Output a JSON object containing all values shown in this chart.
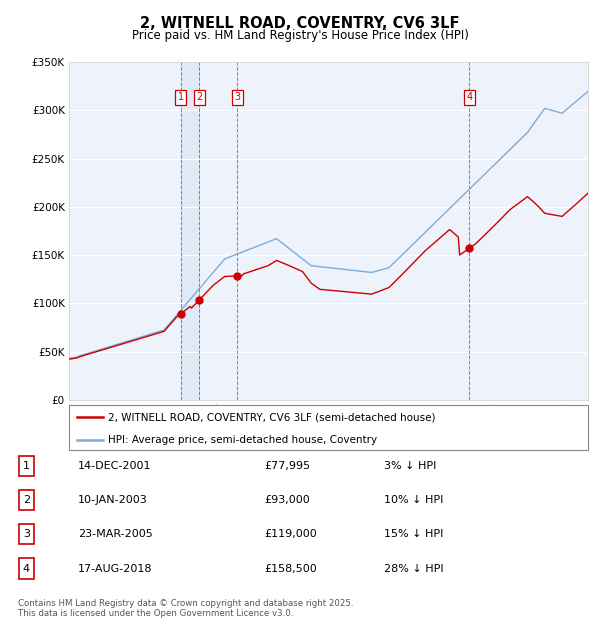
{
  "title": "2, WITNELL ROAD, COVENTRY, CV6 3LF",
  "subtitle": "Price paid vs. HM Land Registry's House Price Index (HPI)",
  "footnote": "Contains HM Land Registry data © Crown copyright and database right 2025.\nThis data is licensed under the Open Government Licence v3.0.",
  "legend_property": "2, WITNELL ROAD, COVENTRY, CV6 3LF (semi-detached house)",
  "legend_hpi": "HPI: Average price, semi-detached house, Coventry",
  "transactions": [
    {
      "num": 1,
      "date": "14-DEC-2001",
      "price": "£77,995",
      "pct": "3% ↓ HPI",
      "year": 2001.96
    },
    {
      "num": 2,
      "date": "10-JAN-2003",
      "price": "£93,000",
      "pct": "10% ↓ HPI",
      "year": 2003.04
    },
    {
      "num": 3,
      "date": "23-MAR-2005",
      "price": "£119,000",
      "pct": "15% ↓ HPI",
      "year": 2005.23
    },
    {
      "num": 4,
      "date": "17-AUG-2018",
      "price": "£158,500",
      "pct": "28% ↓ HPI",
      "year": 2018.63
    }
  ],
  "property_color": "#cc0000",
  "hpi_color": "#7aaddb",
  "shade_color": "#dce8f5",
  "background_color": "#ffffff",
  "plot_bg_color": "#eef3fb",
  "grid_color": "#ffffff",
  "ylim": [
    0,
    350000
  ],
  "yticks": [
    0,
    50000,
    100000,
    150000,
    200000,
    250000,
    300000,
    350000
  ],
  "xlim_start": 1995.5,
  "xlim_end": 2025.5
}
